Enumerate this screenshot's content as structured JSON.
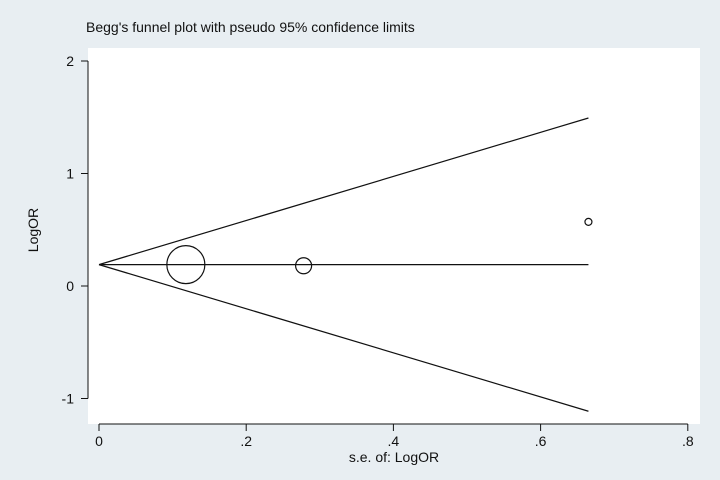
{
  "chart_data": {
    "type": "scatter",
    "title": "Begg's funnel plot with pseudo 95% confidence limits",
    "xlabel": "s.e. of: LogOR",
    "ylabel": "LogOR",
    "xlim": [
      0,
      0.8
    ],
    "ylim": [
      -1.25,
      2.1
    ],
    "x_ticks": [
      0,
      0.2,
      0.4,
      0.6,
      0.8
    ],
    "x_tick_labels": [
      "0",
      ".2",
      ".4",
      ".6",
      ".8"
    ],
    "y_ticks": [
      -1,
      0,
      1,
      2
    ],
    "y_tick_labels": [
      "-1",
      "0",
      "1",
      "2"
    ],
    "grid": false,
    "pooled_estimate": 0.19,
    "funnel_max_se": 0.665,
    "studies": [
      {
        "se": 0.118,
        "logor": 0.19,
        "weight_size": "large"
      },
      {
        "se": 0.278,
        "logor": 0.18,
        "weight_size": "medium"
      },
      {
        "se": 0.665,
        "logor": 0.57,
        "weight_size": "small"
      }
    ],
    "colors": {
      "background": "#e8eef2",
      "plot_area": "#ffffff",
      "ink": "#111111"
    }
  }
}
